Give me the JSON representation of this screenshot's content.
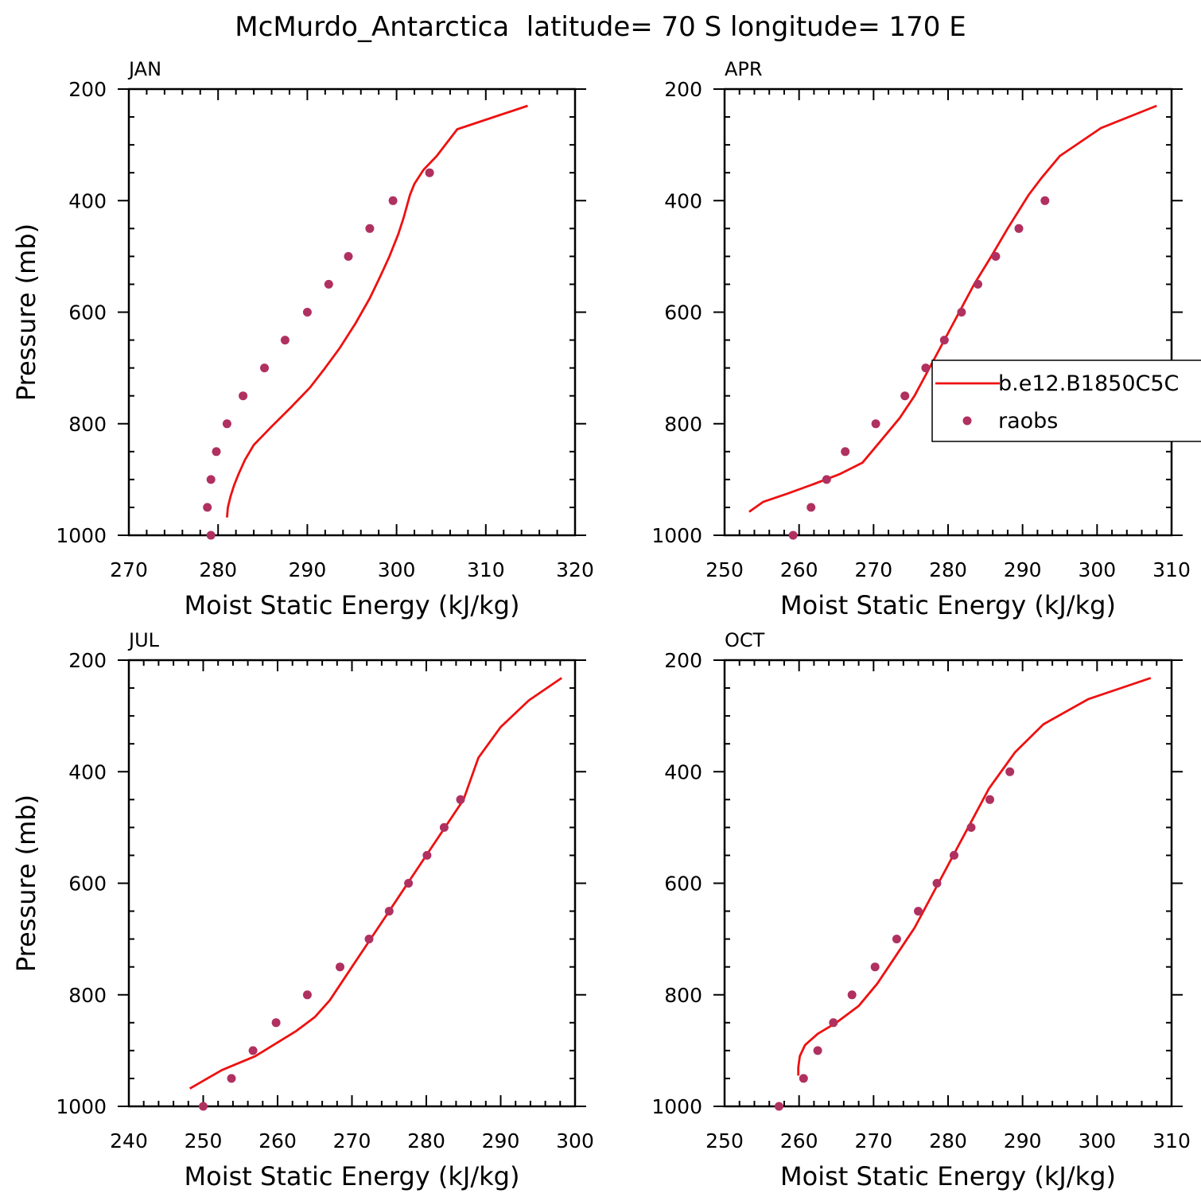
{
  "figure_title": "McMurdo_Antarctica  latitude= 70 S longitude= 170 E",
  "colors": {
    "model": "#ee1111",
    "obs": "#b03060",
    "axis": "#000000"
  },
  "legend": {
    "model_label": "b.e12.B1850C5C",
    "obs_label": "raobs",
    "placement": "right-middle of APR panel"
  },
  "chart_data": [
    {
      "type": "line",
      "panel_title": "JAN",
      "xlabel": "Moist Static Energy (kJ/kg)",
      "ylabel": "Pressure (mb)",
      "xlim": [
        270,
        320
      ],
      "ylim": [
        1000,
        200
      ],
      "xticks": [
        270,
        280,
        290,
        300,
        310,
        320
      ],
      "yticks": [
        200,
        400,
        600,
        800,
        1000
      ],
      "series": [
        {
          "kind": "line",
          "points": [
            [
              281.0,
              968
            ],
            [
              281.1,
              950
            ],
            [
              281.4,
              930
            ],
            [
              281.8,
              910
            ],
            [
              282.3,
              890
            ],
            [
              283.0,
              865
            ],
            [
              284.0,
              838
            ],
            [
              286.0,
              805
            ],
            [
              288.2,
              770
            ],
            [
              290.3,
              735
            ],
            [
              292.0,
              700
            ],
            [
              293.6,
              665
            ],
            [
              295.4,
              620
            ],
            [
              297.0,
              575
            ],
            [
              298.2,
              535
            ],
            [
              299.2,
              500
            ],
            [
              300.2,
              460
            ],
            [
              300.8,
              430
            ],
            [
              301.5,
              390
            ],
            [
              302.0,
              370
            ],
            [
              303.0,
              345
            ],
            [
              304.5,
              320
            ],
            [
              306.8,
              272
            ],
            [
              314.7,
              230
            ]
          ]
        },
        {
          "kind": "scatter",
          "points": [
            [
              279.2,
              1000
            ],
            [
              278.8,
              950
            ],
            [
              279.2,
              900
            ],
            [
              279.8,
              850
            ],
            [
              281.0,
              800
            ],
            [
              282.8,
              750
            ],
            [
              285.2,
              700
            ],
            [
              287.5,
              650
            ],
            [
              290.0,
              600
            ],
            [
              292.4,
              550
            ],
            [
              294.6,
              500
            ],
            [
              297.0,
              450
            ],
            [
              299.6,
              400
            ],
            [
              303.7,
              350
            ]
          ]
        }
      ]
    },
    {
      "type": "line",
      "panel_title": "APR",
      "xlabel": "Moist Static Energy (kJ/kg)",
      "ylabel": "",
      "xlim": [
        250,
        310
      ],
      "ylim": [
        1000,
        200
      ],
      "xticks": [
        250,
        260,
        270,
        280,
        290,
        300,
        310
      ],
      "yticks": [
        200,
        400,
        600,
        800,
        1000
      ],
      "series": [
        {
          "kind": "line",
          "points": [
            [
              253.3,
              958
            ],
            [
              255.2,
              940
            ],
            [
              258.5,
              925
            ],
            [
              262.0,
              908
            ],
            [
              265.5,
              890
            ],
            [
              268.5,
              870
            ],
            [
              271.0,
              830
            ],
            [
              273.5,
              790
            ],
            [
              275.5,
              750
            ],
            [
              277.5,
              700
            ],
            [
              279.5,
              650
            ],
            [
              281.5,
              600
            ],
            [
              283.5,
              550
            ],
            [
              285.8,
              500
            ],
            [
              288.0,
              450
            ],
            [
              290.8,
              390
            ],
            [
              292.5,
              360
            ],
            [
              295.0,
              320
            ],
            [
              300.5,
              270
            ],
            [
              308.0,
              230
            ]
          ]
        },
        {
          "kind": "scatter",
          "points": [
            [
              259.2,
              1000
            ],
            [
              261.6,
              950
            ],
            [
              263.7,
              900
            ],
            [
              266.2,
              850
            ],
            [
              270.3,
              800
            ],
            [
              274.2,
              750
            ],
            [
              277.0,
              700
            ],
            [
              279.5,
              650
            ],
            [
              281.8,
              600
            ],
            [
              284.0,
              550
            ],
            [
              286.4,
              500
            ],
            [
              289.5,
              450
            ],
            [
              293.0,
              400
            ]
          ]
        }
      ]
    },
    {
      "type": "line",
      "panel_title": "JUL",
      "xlabel": "Moist Static Energy (kJ/kg)",
      "ylabel": "Pressure (mb)",
      "xlim": [
        240,
        300
      ],
      "ylim": [
        1000,
        200
      ],
      "xticks": [
        240,
        250,
        260,
        270,
        280,
        290,
        300
      ],
      "yticks": [
        200,
        400,
        600,
        800,
        1000
      ],
      "series": [
        {
          "kind": "line",
          "points": [
            [
              248.2,
              968
            ],
            [
              252.5,
              935
            ],
            [
              257.0,
              910
            ],
            [
              262.5,
              865
            ],
            [
              265.0,
              840
            ],
            [
              267.0,
              810
            ],
            [
              270.0,
              750
            ],
            [
              272.5,
              700
            ],
            [
              275.0,
              650
            ],
            [
              277.5,
              600
            ],
            [
              280.0,
              550
            ],
            [
              282.5,
              500
            ],
            [
              285.0,
              450
            ],
            [
              287.0,
              375
            ],
            [
              290.0,
              320
            ],
            [
              293.8,
              272
            ],
            [
              298.2,
              232
            ]
          ]
        },
        {
          "kind": "scatter",
          "points": [
            [
              250.0,
              1000
            ],
            [
              253.8,
              950
            ],
            [
              256.7,
              900
            ],
            [
              259.8,
              850
            ],
            [
              264.0,
              800
            ],
            [
              268.4,
              750
            ],
            [
              272.3,
              700
            ],
            [
              275.0,
              650
            ],
            [
              277.6,
              600
            ],
            [
              280.1,
              550
            ],
            [
              282.4,
              500
            ],
            [
              284.6,
              450
            ]
          ]
        }
      ]
    },
    {
      "type": "line",
      "panel_title": "OCT",
      "xlabel": "Moist Static Energy (kJ/kg)",
      "ylabel": "",
      "xlim": [
        250,
        310
      ],
      "ylim": [
        1000,
        200
      ],
      "xticks": [
        250,
        260,
        270,
        280,
        290,
        300,
        310
      ],
      "yticks": [
        200,
        400,
        600,
        800,
        1000
      ],
      "series": [
        {
          "kind": "line",
          "points": [
            [
              259.9,
              945
            ],
            [
              259.9,
              930
            ],
            [
              260.1,
              910
            ],
            [
              260.8,
              890
            ],
            [
              262.5,
              870
            ],
            [
              265.0,
              850
            ],
            [
              268.0,
              820
            ],
            [
              270.5,
              780
            ],
            [
              273.0,
              730
            ],
            [
              275.5,
              680
            ],
            [
              277.5,
              630
            ],
            [
              279.5,
              580
            ],
            [
              281.5,
              530
            ],
            [
              283.5,
              480
            ],
            [
              285.5,
              430
            ],
            [
              289.0,
              365
            ],
            [
              292.8,
              315
            ],
            [
              298.8,
              270
            ],
            [
              307.2,
              232
            ]
          ]
        },
        {
          "kind": "scatter",
          "points": [
            [
              257.3,
              1000
            ],
            [
              260.6,
              950
            ],
            [
              262.5,
              900
            ],
            [
              264.6,
              850
            ],
            [
              267.1,
              800
            ],
            [
              270.2,
              750
            ],
            [
              273.1,
              700
            ],
            [
              276.0,
              650
            ],
            [
              278.5,
              600
            ],
            [
              280.8,
              550
            ],
            [
              283.1,
              500
            ],
            [
              285.6,
              450
            ],
            [
              288.3,
              400
            ]
          ]
        }
      ]
    }
  ]
}
